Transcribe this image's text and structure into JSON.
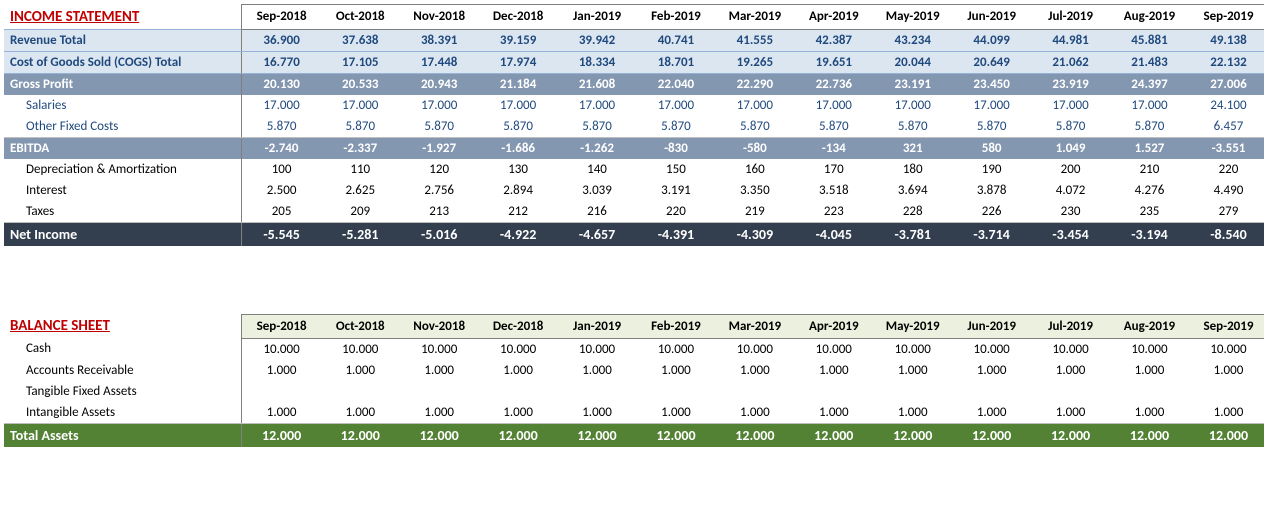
{
  "months": [
    "Sep-2018",
    "Oct-2018",
    "Nov-2018",
    "Dec-2018",
    "Jan-2019",
    "Feb-2019",
    "Mar-2019",
    "Apr-2019",
    "May-2019",
    "Jun-2019",
    "Jul-2019",
    "Aug-2019",
    "Sep-2019"
  ],
  "income_statement": {
    "title": "INCOME STATEMENT",
    "rows": [
      {
        "key": "revenue",
        "label": "Revenue Total",
        "style": "row-revenue",
        "align": "center",
        "values": [
          "36.900",
          "37.638",
          "38.391",
          "39.159",
          "39.942",
          "40.741",
          "41.555",
          "42.387",
          "43.234",
          "44.099",
          "44.981",
          "45.881",
          "49.138"
        ]
      },
      {
        "key": "cogs",
        "label": "Cost of Goods Sold (COGS) Total",
        "style": "row-cogs",
        "align": "center",
        "values": [
          "16.770",
          "17.105",
          "17.448",
          "17.974",
          "18.334",
          "18.701",
          "19.265",
          "19.651",
          "20.044",
          "20.649",
          "21.062",
          "21.483",
          "22.132"
        ]
      },
      {
        "key": "gross",
        "label": "Gross Profit",
        "style": "row-gross",
        "align": "center",
        "values": [
          "20.130",
          "20.533",
          "20.943",
          "21.184",
          "21.608",
          "22.040",
          "22.290",
          "22.736",
          "23.191",
          "23.450",
          "23.919",
          "24.397",
          "27.006"
        ]
      },
      {
        "key": "salaries",
        "label": "Salaries",
        "style": "row-sub",
        "align": "center",
        "values": [
          "17.000",
          "17.000",
          "17.000",
          "17.000",
          "17.000",
          "17.000",
          "17.000",
          "17.000",
          "17.000",
          "17.000",
          "17.000",
          "17.000",
          "24.100"
        ]
      },
      {
        "key": "ofc",
        "label": "Other Fixed Costs",
        "style": "row-sub underline-cells",
        "align": "center",
        "values": [
          "5.870",
          "5.870",
          "5.870",
          "5.870",
          "5.870",
          "5.870",
          "5.870",
          "5.870",
          "5.870",
          "5.870",
          "5.870",
          "5.870",
          "6.457"
        ]
      },
      {
        "key": "ebitda",
        "label": "EBITDA",
        "style": "row-ebitda",
        "align": "center",
        "values": [
          "-2.740",
          "-2.337",
          "-1.927",
          "-1.686",
          "-1.262",
          "-830",
          "-580",
          "-134",
          "321",
          "580",
          "1.049",
          "1.527",
          "-3.551"
        ]
      },
      {
        "key": "dna",
        "label": "Depreciation & Amortization",
        "style": "row-plain",
        "align": "center",
        "values": [
          "100",
          "110",
          "120",
          "130",
          "140",
          "150",
          "160",
          "170",
          "180",
          "190",
          "200",
          "210",
          "220"
        ]
      },
      {
        "key": "interest",
        "label": "Interest",
        "style": "row-plain",
        "align": "center",
        "values": [
          "2.500",
          "2.625",
          "2.756",
          "2.894",
          "3.039",
          "3.191",
          "3.350",
          "3.518",
          "3.694",
          "3.878",
          "4.072",
          "4.276",
          "4.490"
        ]
      },
      {
        "key": "taxes",
        "label": "Taxes",
        "style": "row-plain underline-cells",
        "align": "center",
        "values": [
          "205",
          "209",
          "213",
          "212",
          "216",
          "220",
          "219",
          "223",
          "228",
          "226",
          "230",
          "235",
          "279"
        ]
      },
      {
        "key": "netinc",
        "label": "Net Income",
        "style": "row-netinc",
        "align": "center",
        "values": [
          "-5.545",
          "-5.281",
          "-5.016",
          "-4.922",
          "-4.657",
          "-4.391",
          "-4.309",
          "-4.045",
          "-3.781",
          "-3.714",
          "-3.454",
          "-3.194",
          "-8.540"
        ]
      }
    ]
  },
  "balance_sheet": {
    "title": "BALANCE SHEET",
    "rows": [
      {
        "key": "cash",
        "label": "Cash",
        "style": "row-plain",
        "align": "center",
        "values": [
          "10.000",
          "10.000",
          "10.000",
          "10.000",
          "10.000",
          "10.000",
          "10.000",
          "10.000",
          "10.000",
          "10.000",
          "10.000",
          "10.000",
          "10.000"
        ]
      },
      {
        "key": "ar",
        "label": "Accounts Receivable",
        "style": "row-plain",
        "align": "center",
        "values": [
          "1.000",
          "1.000",
          "1.000",
          "1.000",
          "1.000",
          "1.000",
          "1.000",
          "1.000",
          "1.000",
          "1.000",
          "1.000",
          "1.000",
          "1.000"
        ]
      },
      {
        "key": "tfa",
        "label": "Tangible Fixed Assets",
        "style": "row-plain",
        "align": "center",
        "values": [
          "",
          "",
          "",
          "",
          "",
          "",
          "",
          "",
          "",
          "",
          "",
          "",
          ""
        ]
      },
      {
        "key": "ifa",
        "label": "Intangible Assets",
        "style": "row-plain underline-cells",
        "align": "center",
        "values": [
          "1.000",
          "1.000",
          "1.000",
          "1.000",
          "1.000",
          "1.000",
          "1.000",
          "1.000",
          "1.000",
          "1.000",
          "1.000",
          "1.000",
          "1.000"
        ]
      },
      {
        "key": "totassets",
        "label": "Total Assets",
        "style": "row-totassets",
        "align": "center",
        "values": [
          "12.000",
          "12.000",
          "12.000",
          "12.000",
          "12.000",
          "12.000",
          "12.000",
          "12.000",
          "12.000",
          "12.000",
          "12.000",
          "12.000",
          "12.000"
        ]
      }
    ]
  },
  "colors": {
    "title_red": "#c00000",
    "header_blue_bg": "#dce6f1",
    "header_blue_text": "#1f497d",
    "midblue_bg": "#8497b0",
    "darkblue_bg": "#333f4f",
    "green_bg": "#548235",
    "green_light": "#ebf1de",
    "border": "#7f7f7f"
  }
}
